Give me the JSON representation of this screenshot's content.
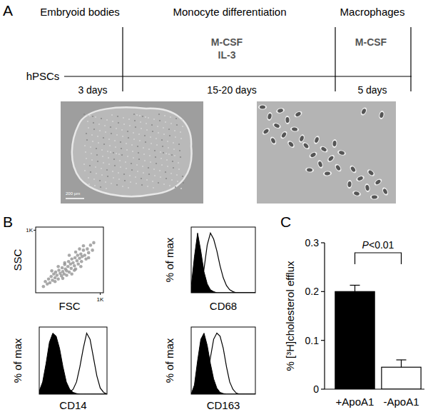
{
  "panel_labels": [
    "A",
    "B",
    "C"
  ],
  "timeline": {
    "start": "hPSCs",
    "stages": [
      {
        "title": "Embryoid bodies",
        "factors": [],
        "duration": "3 days"
      },
      {
        "title": "Monocyte differentiation",
        "factors": [
          "M-CSF",
          "IL-3"
        ],
        "duration": "15-20 days"
      },
      {
        "title": "Macrophages",
        "factors": [
          "M-CSF"
        ],
        "duration": "5 days"
      }
    ],
    "scale_bar": "200 µm"
  },
  "chart_data": [
    {
      "type": "scatter",
      "x_label": "FSC",
      "y_label": "SSC",
      "color": "#8c8c8c",
      "marker": "circle",
      "xlim": [
        0,
        1050
      ],
      "ylim": [
        0,
        1050
      ],
      "xticks": [
        {
          "value": 1000,
          "label": "1K"
        }
      ],
      "yticks": [
        {
          "value": 1000,
          "label": "1K"
        }
      ],
      "x": [
        120,
        150,
        180,
        200,
        220,
        240,
        260,
        280,
        300,
        310,
        330,
        350,
        360,
        380,
        400,
        410,
        420,
        440,
        450,
        460,
        480,
        500,
        510,
        520,
        540,
        550,
        560,
        580,
        600,
        610,
        620,
        640,
        650,
        660,
        680,
        700,
        710,
        720,
        740,
        760,
        780,
        800,
        820,
        850,
        880,
        900,
        300,
        350,
        420,
        480,
        520,
        560,
        620,
        680,
        740,
        250,
        450,
        600,
        700,
        820
      ],
      "values": [
        100,
        180,
        140,
        220,
        160,
        260,
        200,
        300,
        240,
        330,
        280,
        220,
        360,
        310,
        270,
        400,
        340,
        300,
        450,
        380,
        350,
        420,
        500,
        330,
        460,
        390,
        540,
        480,
        430,
        560,
        380,
        510,
        600,
        460,
        550,
        620,
        500,
        580,
        680,
        600,
        540,
        700,
        640,
        760,
        680,
        800,
        180,
        420,
        230,
        280,
        600,
        300,
        650,
        700,
        750,
        350,
        480,
        360,
        420,
        560
      ]
    },
    {
      "type": "area",
      "x_label": "CD68",
      "y_label": "% of max",
      "tick_labels": false,
      "xlim": [
        0,
        100
      ],
      "ylim": [
        0,
        110
      ],
      "x": [
        0,
        5,
        10,
        15,
        20,
        25,
        30,
        35,
        40,
        45,
        50,
        55,
        60,
        65,
        70,
        75,
        80,
        85,
        90,
        95,
        100
      ],
      "series": [
        {
          "type": "area",
          "color": "#000000",
          "values": [
            10,
            60,
            100,
            70,
            35,
            15,
            5,
            2,
            0,
            0,
            0,
            0,
            0,
            0,
            0,
            0,
            0,
            0,
            0,
            0,
            0
          ]
        },
        {
          "type": "line",
          "color": "#000000",
          "values": [
            0,
            0,
            2,
            10,
            40,
            80,
            100,
            90,
            70,
            45,
            25,
            12,
            5,
            2,
            0,
            0,
            0,
            0,
            0,
            0,
            0
          ]
        }
      ]
    },
    {
      "type": "area",
      "x_label": "CD14",
      "y_label": "% of max",
      "tick_labels": false,
      "xlim": [
        0,
        100
      ],
      "ylim": [
        0,
        110
      ],
      "x": [
        0,
        5,
        10,
        15,
        20,
        25,
        30,
        35,
        40,
        45,
        50,
        55,
        60,
        65,
        70,
        75,
        80,
        85,
        90,
        95,
        100
      ],
      "series": [
        {
          "type": "area",
          "color": "#000000",
          "values": [
            5,
            20,
            50,
            85,
            100,
            95,
            75,
            45,
            20,
            8,
            3,
            1,
            0,
            0,
            0,
            0,
            0,
            0,
            0,
            0,
            0
          ]
        },
        {
          "type": "line",
          "color": "#000000",
          "values": [
            0,
            0,
            0,
            0,
            0,
            0,
            0,
            0,
            1,
            3,
            8,
            20,
            45,
            75,
            100,
            90,
            60,
            30,
            10,
            3,
            0
          ]
        }
      ]
    },
    {
      "type": "area",
      "x_label": "CD163",
      "y_label": "% of max",
      "tick_labels": false,
      "xlim": [
        0,
        100
      ],
      "ylim": [
        0,
        110
      ],
      "x": [
        0,
        5,
        10,
        15,
        20,
        25,
        30,
        35,
        40,
        45,
        50,
        55,
        60,
        65,
        70,
        75,
        80,
        85,
        90,
        95,
        100
      ],
      "series": [
        {
          "type": "area",
          "color": "#000000",
          "values": [
            0,
            15,
            55,
            90,
            100,
            80,
            50,
            25,
            10,
            3,
            1,
            0,
            0,
            0,
            0,
            0,
            0,
            0,
            0,
            0,
            0
          ]
        },
        {
          "type": "line",
          "color": "#000000",
          "values": [
            0,
            0,
            1,
            4,
            12,
            30,
            60,
            90,
            100,
            95,
            75,
            45,
            20,
            8,
            2,
            0,
            0,
            0,
            0,
            0,
            0
          ]
        }
      ]
    },
    {
      "type": "bar",
      "y_label": "% [³H]cholesterol efflux",
      "categories": [
        "+ApoA1",
        "-ApoA1"
      ],
      "values": [
        0.2,
        0.045
      ],
      "errors": [
        0.013,
        0.015
      ],
      "colors": [
        "#000000",
        "#ffffff"
      ],
      "ylim": [
        0,
        0.3
      ],
      "yticks": [
        0,
        0.1,
        0.2,
        0.3
      ],
      "annotation": "P<0.01"
    }
  ]
}
